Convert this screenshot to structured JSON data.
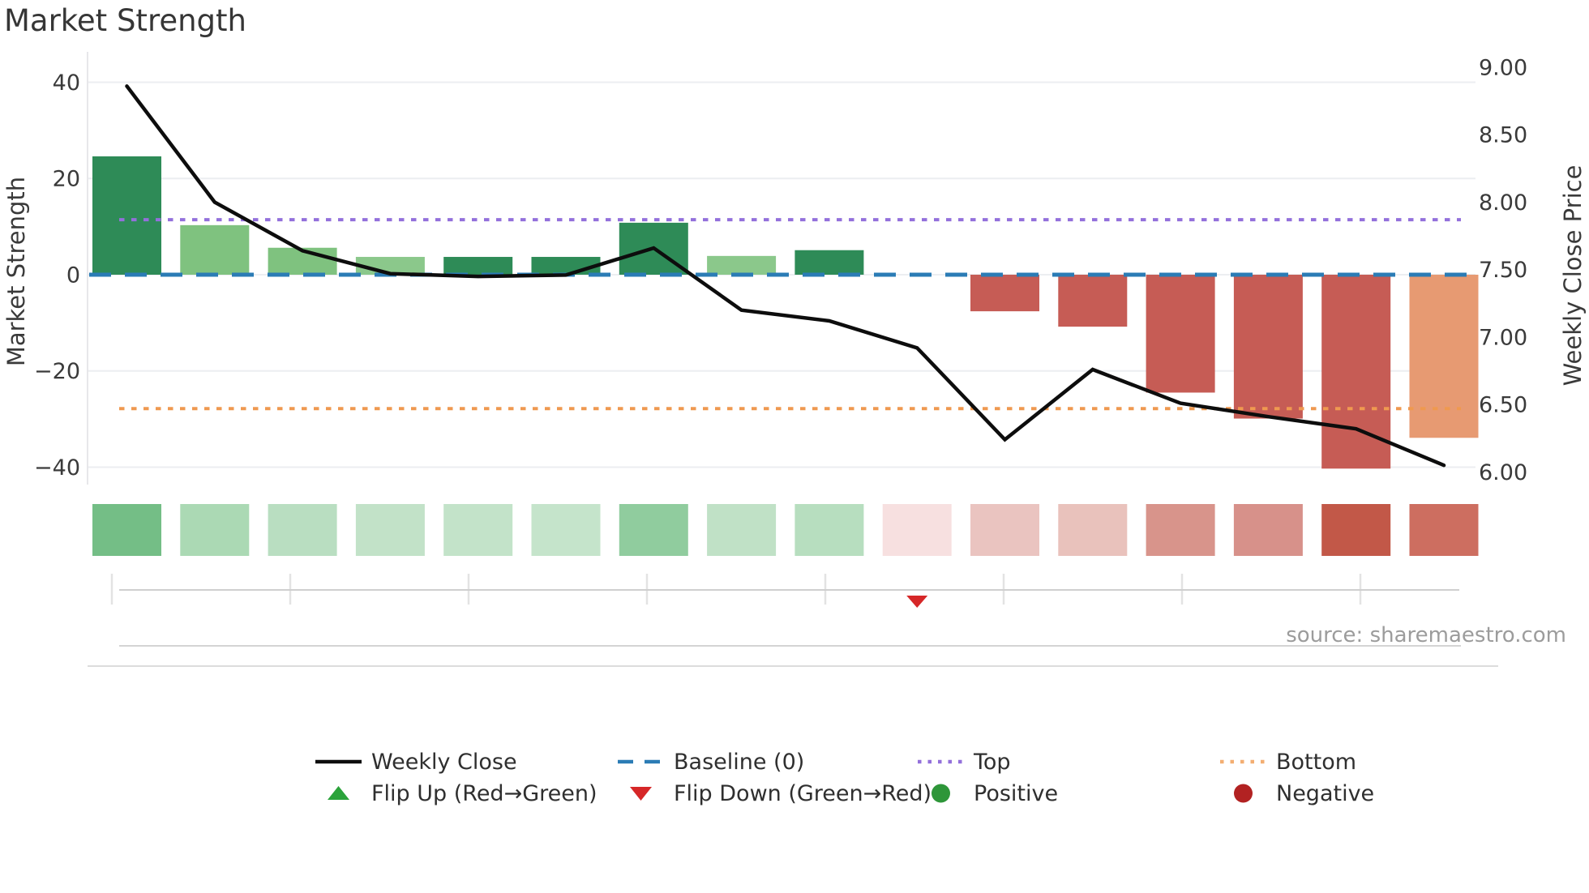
{
  "title": "Market Strength",
  "source": "source: sharemaestro.com",
  "left_axis": {
    "label": "Market Strength",
    "tick_labels": [
      "40",
      "20",
      "0",
      "−20",
      "−40"
    ],
    "tick_values": [
      40,
      20,
      0,
      -20,
      -40
    ]
  },
  "right_axis": {
    "label": "Weekly Close Price",
    "tick_labels": [
      "9.00",
      "8.50",
      "8.00",
      "7.50",
      "7.00",
      "6.50",
      "6.00"
    ],
    "tick_values": [
      9.0,
      8.5,
      8.0,
      7.5,
      7.0,
      6.5,
      6.0
    ]
  },
  "chart_data": {
    "type": "combo-bar-line",
    "title": "Market Strength",
    "x_count": 16,
    "x_tick_labels_visible": false,
    "grid": true,
    "left_ylim": [
      -44,
      46
    ],
    "right_ylim": [
      5.9,
      9.1
    ],
    "bar_series": {
      "name": "Market Strength",
      "axis": "left",
      "values": [
        24.6,
        10.3,
        5.6,
        3.7,
        3.7,
        3.7,
        10.8,
        3.9,
        5.1,
        0,
        -7.6,
        -10.8,
        -24.5,
        -29.9,
        -40.3,
        -33.9
      ],
      "colors": [
        "#2e8b57",
        "#7fc27f",
        "#7fc27f",
        "#8bc88b",
        "#2e8b57",
        "#2e8b57",
        "#2e8b57",
        "#8bc88b",
        "#2e8b57",
        null,
        "#c65c55",
        "#c65c55",
        "#c65c55",
        "#c65c55",
        "#c65c55",
        "#e79a72"
      ]
    },
    "line_series": {
      "name": "Weekly Close",
      "axis": "right",
      "color": "#0d0d0d",
      "values": [
        8.86,
        8.0,
        7.64,
        7.47,
        7.45,
        7.46,
        7.66,
        7.2,
        7.12,
        6.92,
        6.24,
        6.76,
        6.51,
        6.41,
        6.32,
        6.05
      ]
    },
    "reference_lines": [
      {
        "name": "Baseline (0)",
        "axis": "left",
        "value": 0,
        "color": "#2b7cb5",
        "style": "dashed"
      },
      {
        "name": "Top",
        "axis": "right",
        "value": 7.87,
        "color": "#9370db",
        "style": "dotted"
      },
      {
        "name": "Bottom",
        "axis": "right",
        "value": 6.47,
        "color": "#ef9950",
        "style": "dotted"
      }
    ],
    "strength_strip_colors": [
      "#74be86",
      "#abd9b4",
      "#b9dec1",
      "#c2e2c8",
      "#c3e3c9",
      "#c5e4cb",
      "#90cc9e",
      "#c0e1c6",
      "#b7debf",
      "#f7e0e0",
      "#eac4c0",
      "#e9c2bc",
      "#d8948b",
      "#d7918a",
      "#c25848",
      "#cd6e60"
    ],
    "markers": [
      {
        "name": "Flip Down (Green→Red)",
        "x_index": 10,
        "shape": "triangle-down",
        "color": "#d62728"
      }
    ]
  },
  "legend": {
    "rows": [
      [
        {
          "icon": "line",
          "color": "#0d0d0d",
          "label": "Weekly Close"
        },
        {
          "icon": "dashes",
          "color": "#2b7cb5",
          "label": "Baseline (0)"
        },
        {
          "icon": "dots",
          "color": "#9370db",
          "label": "Top"
        },
        {
          "icon": "dots",
          "color": "#f3ae72",
          "label": "Bottom"
        }
      ],
      [
        {
          "icon": "triangle-up",
          "color": "#2ba33b",
          "label": "Flip Up (Red→Green)"
        },
        {
          "icon": "triangle-down",
          "color": "#d62728",
          "label": "Flip Down (Green→Red)"
        },
        {
          "icon": "circle",
          "color": "#2e9639",
          "label": "Positive"
        },
        {
          "icon": "circle",
          "color": "#b22222",
          "label": "Negative"
        }
      ]
    ]
  }
}
